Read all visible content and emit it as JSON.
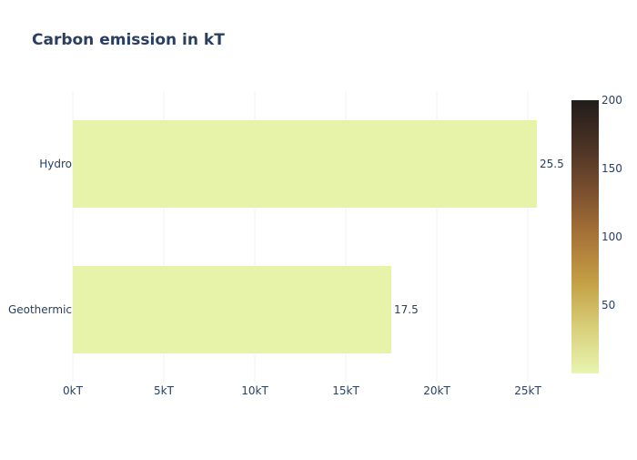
{
  "chart_data": {
    "type": "bar",
    "orientation": "horizontal",
    "title": "Carbon emission in kT",
    "categories": [
      "Geothermic",
      "Hydro"
    ],
    "values": [
      17.5,
      25.5
    ],
    "value_labels": [
      "17.5",
      "25.5"
    ],
    "xlabel": "",
    "ylabel": "",
    "xlim": [
      0,
      27
    ],
    "x_ticks": [
      0,
      5,
      10,
      15,
      20,
      25
    ],
    "x_tick_labels": [
      "0kT",
      "5kT",
      "10kT",
      "15kT",
      "20kT",
      "25kT"
    ],
    "grid": true,
    "bar_color": "#e6f3a8",
    "colorbar": {
      "range": [
        0,
        200
      ],
      "ticks": [
        50,
        100,
        150,
        200
      ],
      "tick_labels": [
        "50",
        "100",
        "150",
        "200"
      ],
      "colors": [
        "#e8f5b0",
        "#d8cf7a",
        "#c4a045",
        "#a87438",
        "#7a4f2e",
        "#4a3224",
        "#211d1a"
      ]
    }
  }
}
